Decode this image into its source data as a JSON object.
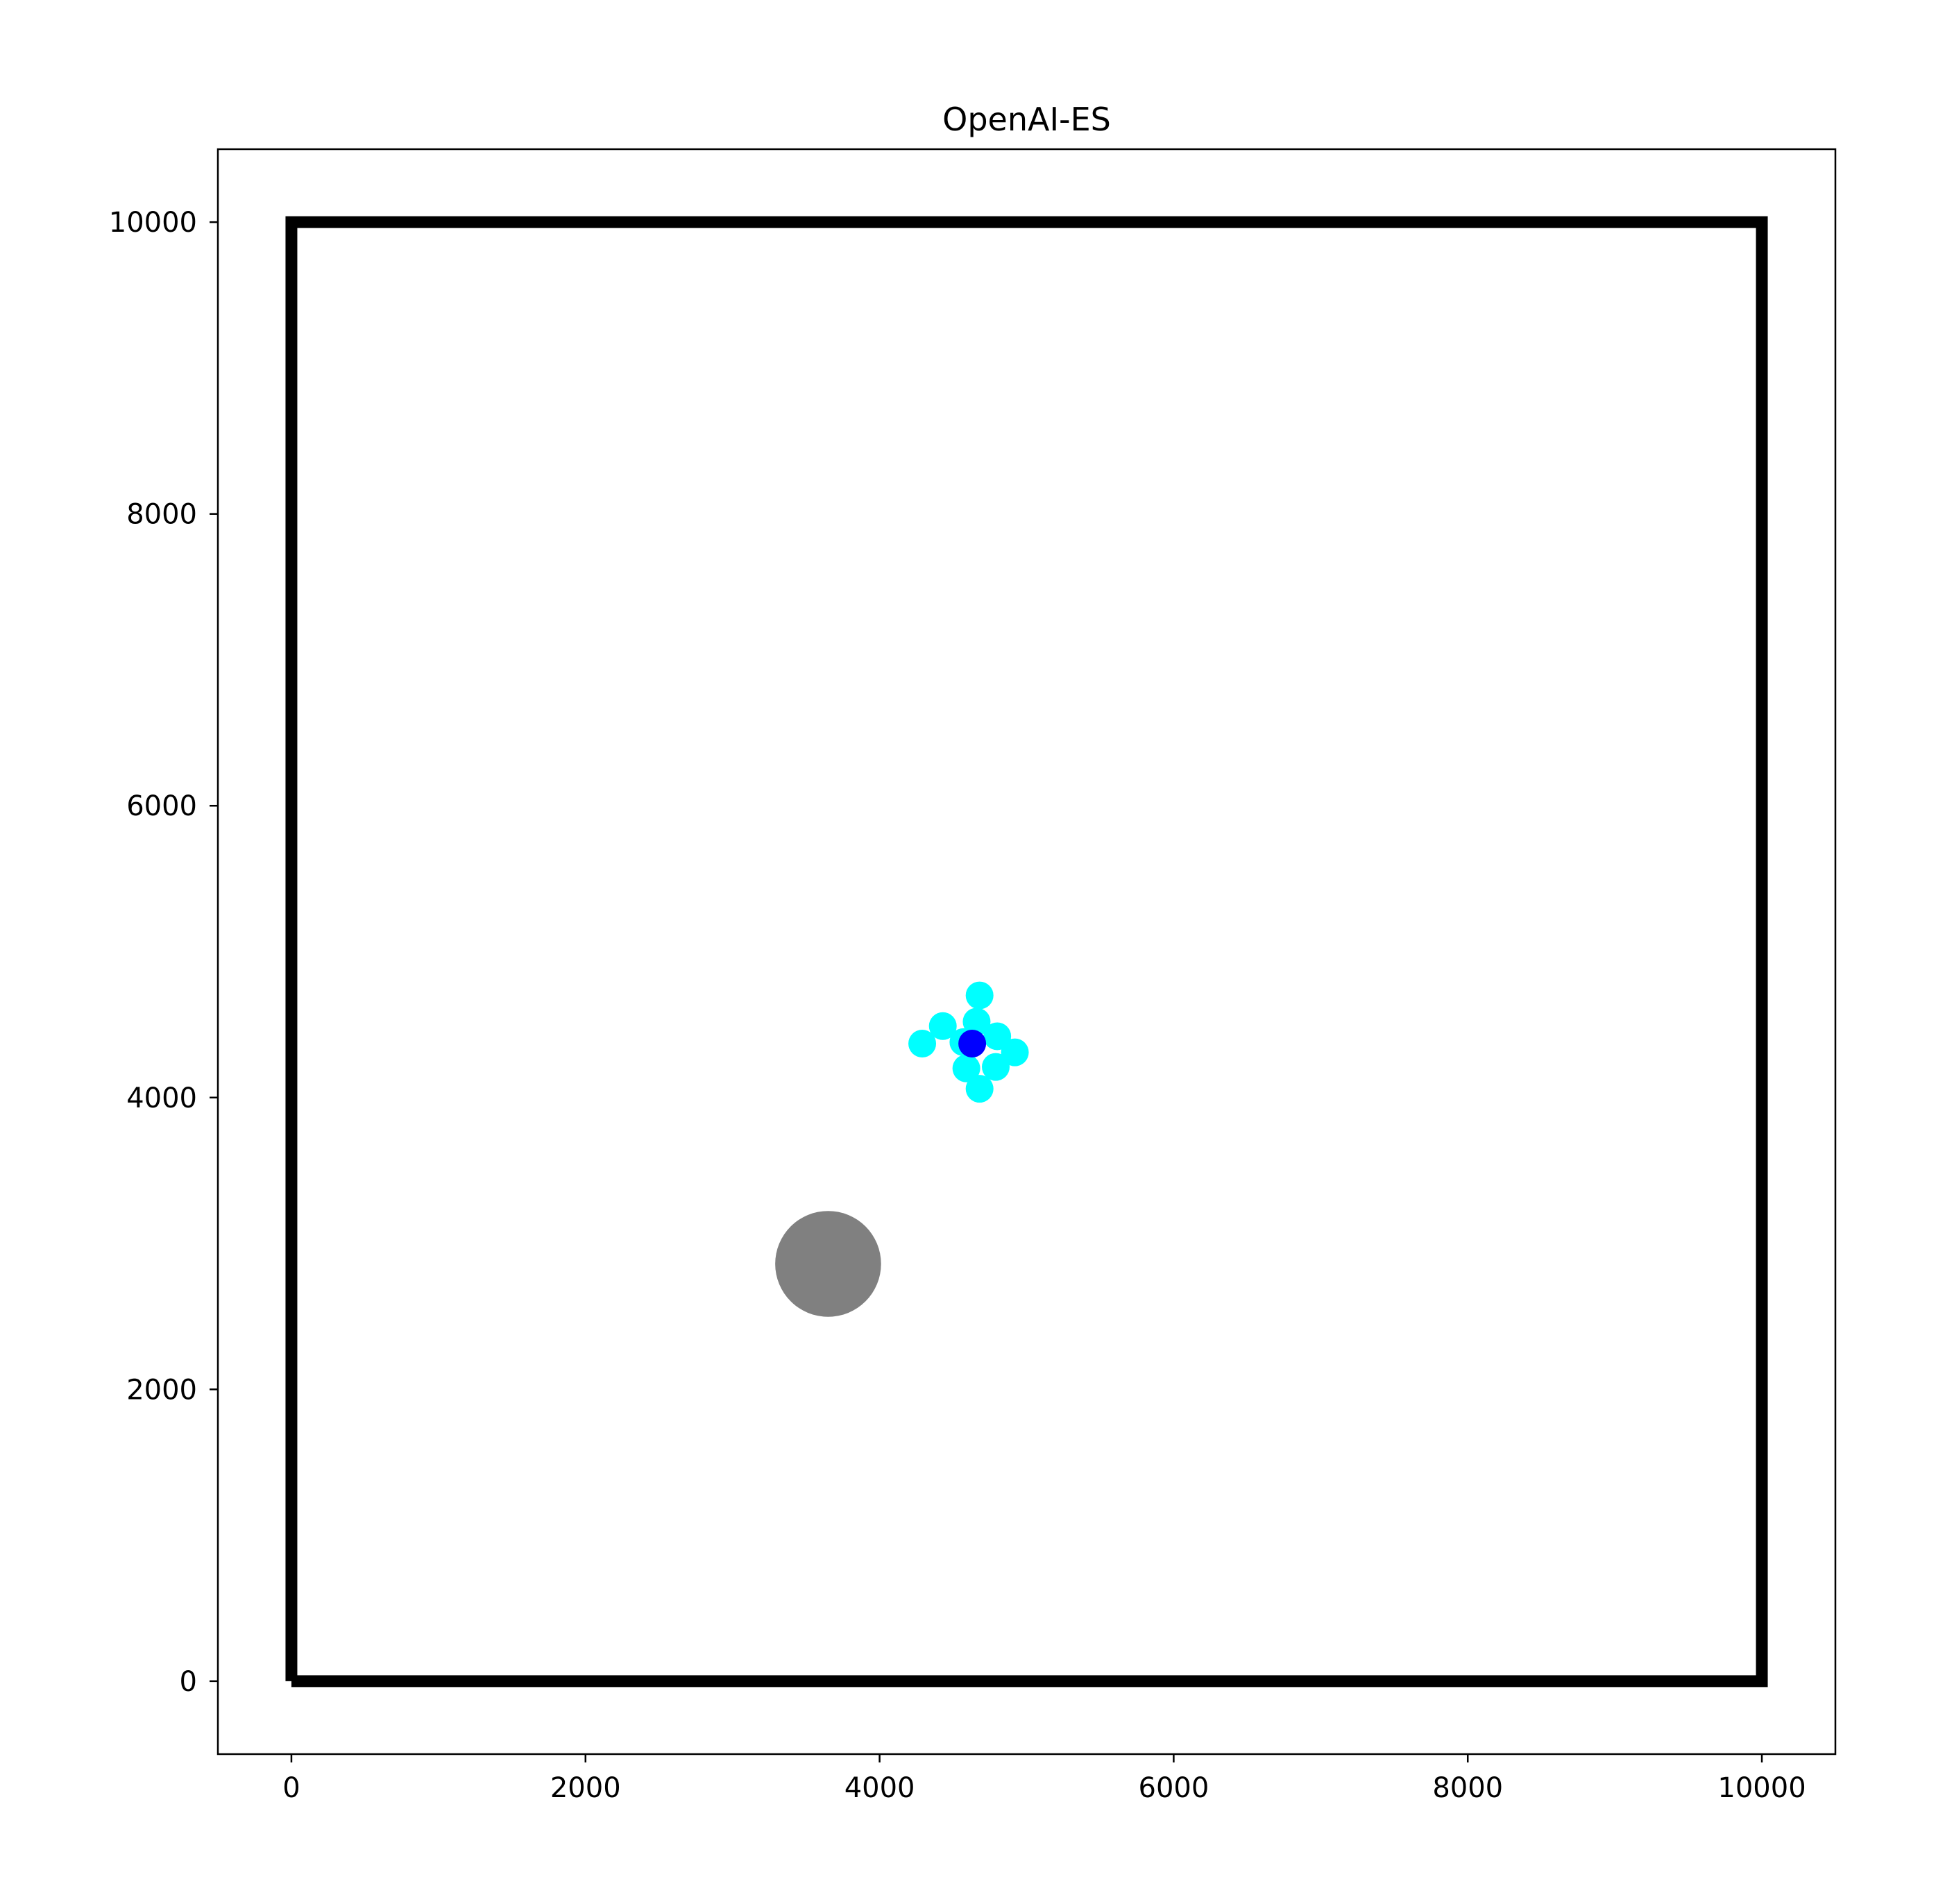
{
  "chart_data": {
    "type": "scatter",
    "title": "OpenAI-ES",
    "xlabel": "",
    "ylabel": "",
    "xlim": [
      -500,
      10500
    ],
    "ylim": [
      -500,
      10500
    ],
    "x_ticks": [
      0,
      2000,
      4000,
      6000,
      8000,
      10000
    ],
    "y_ticks": [
      0,
      2000,
      4000,
      6000,
      8000,
      10000
    ],
    "x_tick_labels": [
      "0",
      "2000",
      "4000",
      "6000",
      "8000",
      "10000"
    ],
    "y_tick_labels": [
      "0",
      "2000",
      "4000",
      "6000",
      "8000",
      "10000"
    ],
    "grid": false,
    "boundary": {
      "x": [
        0,
        10000,
        10000,
        0,
        0
      ],
      "y": [
        0,
        0,
        10000,
        10000,
        0
      ],
      "color": "#000000"
    },
    "target": {
      "x": 3650,
      "y": 2860,
      "radius": 360,
      "color": "#808080"
    },
    "samples": {
      "color": "#00ffff",
      "points": [
        {
          "x": 4680,
          "y": 4700
        },
        {
          "x": 4430,
          "y": 4490
        },
        {
          "x": 4660,
          "y": 4520
        },
        {
          "x": 4290,
          "y": 4370
        },
        {
          "x": 4570,
          "y": 4380
        },
        {
          "x": 4800,
          "y": 4420
        },
        {
          "x": 4920,
          "y": 4310
        },
        {
          "x": 4590,
          "y": 4200
        },
        {
          "x": 4790,
          "y": 4210
        },
        {
          "x": 4680,
          "y": 4060
        }
      ]
    },
    "mean": {
      "x": 4630,
      "y": 4370,
      "color": "#0000ff"
    }
  }
}
